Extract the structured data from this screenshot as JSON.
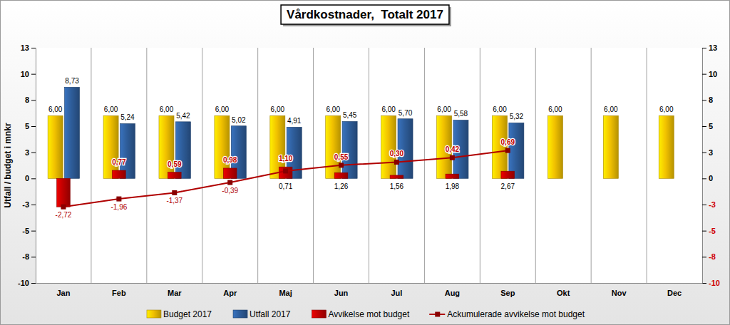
{
  "chart_data": {
    "type": "bar",
    "title": "Vårdkostnader,  Totalt 2017",
    "y_label": "Utfall / budget i mnkr",
    "categories": [
      "Jan",
      "Feb",
      "Mar",
      "Apr",
      "Maj",
      "Jun",
      "Jul",
      "Aug",
      "Sep",
      "Okt",
      "Nov",
      "Dec"
    ],
    "series": [
      {
        "name": "Budget 2017",
        "color": "#f2c200",
        "values": [
          6,
          6,
          6,
          6,
          6,
          6,
          6,
          6,
          6,
          6,
          6,
          6
        ],
        "value_labels": [
          "6,00",
          "6,00",
          "6,00",
          "6,00",
          "6,00",
          "6,00",
          "6,00",
          "6,00",
          "6,00",
          "6,00",
          "6,00",
          "6,00"
        ]
      },
      {
        "name": "Utfall 2017",
        "color": "#2e5d9a",
        "values": [
          8.73,
          5.24,
          5.42,
          5.02,
          4.91,
          5.45,
          5.7,
          5.58,
          5.32,
          null,
          null,
          null
        ],
        "value_labels": [
          "8,73",
          "5,24",
          "5,42",
          "5,02",
          "4,91",
          "5,45",
          "5,70",
          "5,58",
          "5,32",
          null,
          null,
          null
        ]
      },
      {
        "name": "Avvikelse mot budget",
        "color": "#c00000",
        "values": [
          -2.72,
          0.77,
          0.59,
          0.98,
          1.1,
          0.55,
          0.3,
          0.42,
          0.69,
          null,
          null,
          null
        ],
        "value_labels": [
          null,
          "0,77",
          "0,59",
          "0,98",
          "1,10",
          "0,55",
          "0,30",
          "0,42",
          "0,69",
          null,
          null,
          null
        ]
      },
      {
        "name": "Ackumulerade avvikelse mot budget",
        "type": "line",
        "color": "#b00000",
        "marker": "square",
        "axis": "y2",
        "values": [
          -2.72,
          -1.96,
          -1.37,
          -0.39,
          0.71,
          1.26,
          1.56,
          1.98,
          2.67,
          null,
          null,
          null
        ],
        "value_labels": [
          "-2,72",
          "-1,96",
          "-1,37",
          "-0,39",
          "0,71",
          "1,26",
          "1,56",
          "1,98",
          "2,67",
          null,
          null,
          null
        ]
      }
    ],
    "ylim": [
      -10,
      12.5
    ],
    "yticks": [
      {
        "value": -10,
        "label": "-10"
      },
      {
        "value": -7.5,
        "label": "-8"
      },
      {
        "value": -5,
        "label": "-5"
      },
      {
        "value": -2.5,
        "label": "-3"
      },
      {
        "value": 0,
        "label": "0"
      },
      {
        "value": 2.5,
        "label": "3"
      },
      {
        "value": 5,
        "label": "5"
      },
      {
        "value": 7.5,
        "label": "8"
      },
      {
        "value": 10,
        "label": "10"
      },
      {
        "value": 12.5,
        "label": "13"
      }
    ],
    "y2lim": [
      -10,
      12.5
    ],
    "y2ticks": [
      {
        "value": -10,
        "label": "-10"
      },
      {
        "value": -7.5,
        "label": "-8"
      },
      {
        "value": -5,
        "label": "-5"
      },
      {
        "value": -2.5,
        "label": "-3"
      },
      {
        "value": 0,
        "label": "0"
      },
      {
        "value": 2.5,
        "label": "3"
      },
      {
        "value": 5,
        "label": "5"
      },
      {
        "value": 7.5,
        "label": "8"
      },
      {
        "value": 10,
        "label": "10"
      },
      {
        "value": 12.5,
        "label": "13"
      }
    ],
    "grid": true,
    "legend": "bottom",
    "data_labels": true
  }
}
